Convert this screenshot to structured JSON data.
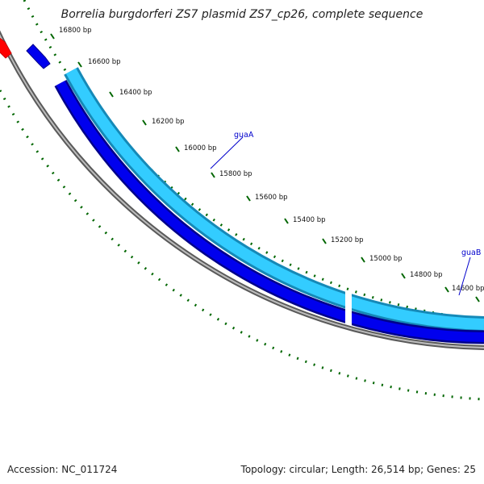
{
  "title": "Borrelia burgdorferi ZS7 plasmid ZS7_cp26, complete sequence",
  "footer": {
    "accession": "Accession: NC_011724",
    "summary": "Topology: circular; Length: 26,514 bp; Genes: 25"
  },
  "tick_labels": [
    "16800 bp",
    "16600 bp",
    "16400 bp",
    "16200 bp",
    "16000 bp",
    "15800 bp",
    "15600 bp",
    "15400 bp",
    "15200 bp",
    "15000 bp",
    "14800 bp",
    "14600 bp"
  ],
  "genes": [
    {
      "name": "guaA",
      "color": "#0000cc"
    },
    {
      "name": "guaB",
      "color": "#0000cc"
    }
  ],
  "colors": {
    "backbone": "#808080",
    "forward_feature": "#33ccff",
    "reverse_feature": "#0000ee",
    "other_feature": "#ff0000",
    "ticks": "#006600",
    "pointer": "#0000cc"
  }
}
